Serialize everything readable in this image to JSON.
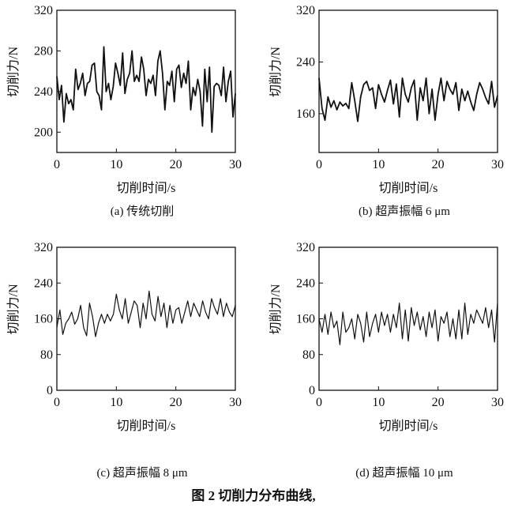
{
  "figure_caption": "图 2 切削力分布曲线,",
  "chart_data": [
    {
      "type": "line",
      "caption": "(a) 传统切削",
      "xlabel": "切削时间/s",
      "ylabel": "切削力/N",
      "xlim": [
        0,
        30
      ],
      "ylim": [
        180,
        320
      ],
      "xticks": [
        "0",
        "10",
        "20",
        "30"
      ],
      "yticks": [
        "200",
        "240",
        "280",
        "320"
      ],
      "grid": false,
      "line_color": "#111111",
      "values": [
        255,
        232,
        246,
        210,
        238,
        228,
        232,
        222,
        262,
        242,
        248,
        258,
        236,
        248,
        250,
        266,
        268,
        240,
        236,
        222,
        284,
        240,
        248,
        232,
        245,
        268,
        258,
        246,
        278,
        238,
        252,
        258,
        280,
        250,
        256,
        250,
        274,
        262,
        236,
        252,
        248,
        256,
        236,
        270,
        280,
        258,
        222,
        250,
        246,
        260,
        230,
        262,
        266,
        244,
        258,
        248,
        270,
        222,
        244,
        236,
        252,
        240,
        206,
        262,
        230,
        264,
        200,
        245,
        248,
        246,
        236,
        264,
        230,
        250,
        260,
        215,
        238
      ]
    },
    {
      "type": "line",
      "caption": "(b) 超声振幅 6 μm",
      "xlabel": "切削时间/s",
      "ylabel": "切削力/N",
      "xlim": [
        0,
        30
      ],
      "ylim": [
        100,
        320
      ],
      "xticks": [
        "0",
        "10",
        "20",
        "30"
      ],
      "yticks": [
        "160",
        "240",
        "320"
      ],
      "grid": false,
      "line_color": "#111111",
      "values": [
        215,
        168,
        150,
        186,
        170,
        180,
        166,
        178,
        172,
        176,
        168,
        208,
        180,
        148,
        186,
        205,
        210,
        196,
        200,
        168,
        205,
        190,
        178,
        196,
        212,
        175,
        206,
        155,
        215,
        190,
        178,
        200,
        212,
        150,
        200,
        180,
        215,
        160,
        198,
        150,
        190,
        215,
        180,
        210,
        198,
        190,
        208,
        165,
        198,
        180,
        195,
        178,
        165,
        190,
        208,
        198,
        185,
        175,
        210,
        170,
        188
      ]
    },
    {
      "type": "line",
      "caption": "(c) 超声振幅 8 μm",
      "xlabel": "切削时间/s",
      "ylabel": "切削力/N",
      "xlim": [
        0,
        30
      ],
      "ylim": [
        0,
        320
      ],
      "xticks": [
        "0",
        "10",
        "20",
        "30"
      ],
      "yticks": [
        "0",
        "80",
        "160",
        "240",
        "320"
      ],
      "grid": false,
      "line_color": "#111111",
      "values": [
        140,
        180,
        125,
        150,
        160,
        175,
        148,
        160,
        190,
        140,
        122,
        195,
        165,
        120,
        150,
        170,
        150,
        170,
        155,
        170,
        215,
        180,
        160,
        205,
        150,
        175,
        200,
        190,
        140,
        195,
        160,
        222,
        170,
        155,
        210,
        165,
        195,
        140,
        190,
        150,
        180,
        185,
        150,
        175,
        200,
        165,
        195,
        180,
        165,
        200,
        175,
        160,
        205,
        185,
        170,
        205,
        165,
        195,
        175,
        165,
        190
      ]
    },
    {
      "type": "line",
      "caption": "(d) 超声振幅 10 μm",
      "xlabel": "切削时间/s",
      "ylabel": "切削力/N",
      "xlim": [
        0,
        30
      ],
      "ylim": [
        0,
        320
      ],
      "xticks": [
        "0",
        "10",
        "20",
        "30"
      ],
      "yticks": [
        "0",
        "80",
        "160",
        "240",
        "320"
      ],
      "grid": false,
      "line_color": "#111111",
      "values": [
        160,
        130,
        170,
        125,
        175,
        140,
        155,
        102,
        175,
        130,
        140,
        160,
        115,
        170,
        150,
        108,
        175,
        120,
        150,
        170,
        130,
        175,
        145,
        170,
        130,
        170,
        140,
        195,
        115,
        180,
        110,
        185,
        145,
        175,
        135,
        165,
        120,
        175,
        140,
        180,
        110,
        165,
        150,
        175,
        120,
        160,
        115,
        180,
        115,
        195,
        125,
        170,
        150,
        180,
        165,
        150,
        185,
        140,
        180,
        108,
        195
      ]
    }
  ]
}
